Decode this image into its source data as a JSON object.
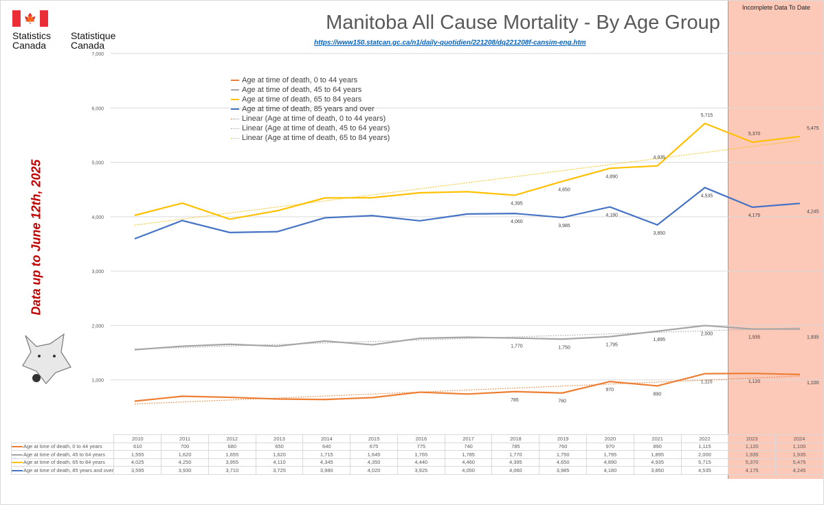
{
  "logo": {
    "en": "Statistics\nCanada",
    "fr": "Statistique\nCanada"
  },
  "header": {
    "title": "Manitoba All Cause Mortality - By Age Group",
    "url": "https://www150.statcan.gc.ca/n1/daily-quotidien/221208/dq221208f-cansim-eng.htm",
    "side_note": "Data up to June 12th, 2025",
    "incomplete_label": "Incomplete Data To Date"
  },
  "chart_data": {
    "type": "line",
    "categories": [
      "2010",
      "2011",
      "2012",
      "2013",
      "2014",
      "2015",
      "2016",
      "2017",
      "2018",
      "2019",
      "2020",
      "2021",
      "2022",
      "2023",
      "2024"
    ],
    "ylim": [
      0,
      7000
    ],
    "yticks": [
      "",
      "1,000",
      "2,000",
      "3,000",
      "4,000",
      "5,000",
      "6,000",
      "7,000"
    ],
    "grid": true,
    "legend_position": "top-left",
    "incomplete_years": [
      "2023",
      "2024"
    ],
    "series": [
      {
        "name": "Age at time of death, 0 to 44 years",
        "color": "#ed7d31",
        "values": [
          610,
          700,
          680,
          650,
          640,
          675,
          775,
          740,
          785,
          760,
          970,
          890,
          1115,
          1120,
          1100
        ],
        "trend": true
      },
      {
        "name": "Age at time of death, 45 to 64 years",
        "color": "#a5a5a5",
        "values": [
          1555,
          1620,
          1655,
          1620,
          1715,
          1645,
          1765,
          1785,
          1770,
          1750,
          1795,
          1895,
          2000,
          1935,
          1935
        ],
        "trend": true
      },
      {
        "name": "Age at time of death, 65 to 84 years",
        "color": "#ffc000",
        "values": [
          4025,
          4250,
          3955,
          4110,
          4345,
          4350,
          4440,
          4460,
          4395,
          4650,
          4890,
          4935,
          5715,
          5370,
          5475
        ],
        "trend": true
      },
      {
        "name": "Age at time of death, 85 years and over",
        "color": "#4472c4",
        "values": [
          3595,
          3930,
          3710,
          3725,
          3980,
          4020,
          3925,
          4050,
          4060,
          3985,
          4180,
          3850,
          4535,
          4175,
          4245
        ],
        "trend": true
      }
    ],
    "trend_legend": [
      "Linear (Age at time of death, 0 to 44 years)",
      "Linear (Age at time of death, 45 to 64 years)",
      "Linear (Age at time of death, 65 to 84 years)"
    ],
    "data_labels_from": "2018"
  }
}
